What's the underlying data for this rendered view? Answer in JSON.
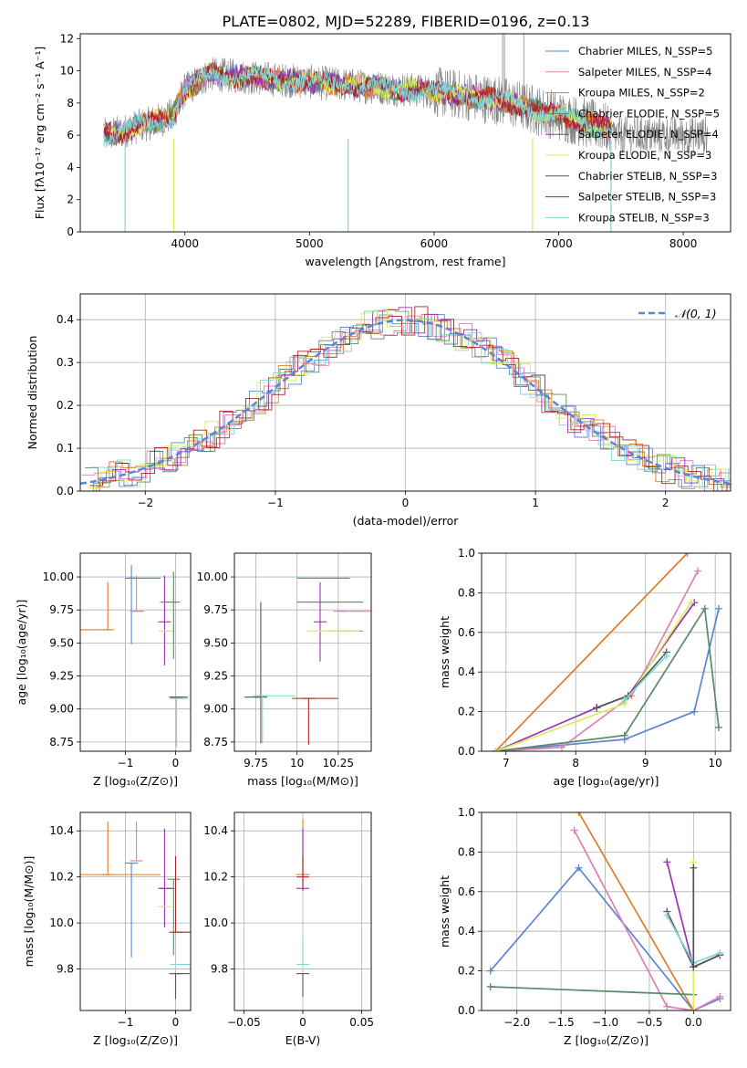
{
  "figure": {
    "title": "PLATE=0802, MJD=52289, FIBERID=0196, z=0.13"
  },
  "colors": {
    "chabrier_miles": "#5b84d2",
    "salpeter_miles": "#e07fb6",
    "kroupa_miles": "#e07b26",
    "chabrier_elodie": "#5b8a66",
    "salpeter_elodie": "#9a2fb0",
    "kroupa_elodie": "#d4ef5a",
    "chabrier_stelib": "#555555",
    "salpeter_stelib": "#b22222",
    "kroupa_stelib": "#7fd6d6",
    "normal_curve": "#5b84d2",
    "grid": "#b0b0b0",
    "spectrum_data": "#808080"
  },
  "chart_data": [
    {
      "id": "spectrum",
      "type": "line",
      "xlabel": "wavelength [Angstrom, rest frame]",
      "ylabel": "Flux [fλ10⁻¹⁷ erg cm⁻² s⁻¹ A⁻¹]",
      "xlim": [
        3160,
        8380
      ],
      "ylim": [
        0,
        12.3
      ],
      "xticks": [
        4000,
        5000,
        6000,
        7000,
        8000
      ],
      "yticks": [
        0,
        2,
        4,
        6,
        8,
        10,
        12
      ],
      "grid": false,
      "legend_position": "top-right",
      "legend": [
        "Chabrier MILES, N_SSP=5",
        "Salpeter MILES, N_SSP=4",
        "Kroupa MILES, N_SSP=2",
        "Chabrier ELODIE, N_SSP=5",
        "Salpeter ELODIE, N_SSP=4",
        "Kroupa ELODIE, N_SSP=3",
        "Chabrier STELIB, N_SSP=3",
        "Salpeter STELIB, N_SSP=3",
        "Kroupa STELIB, N_SSP=3"
      ],
      "continuum": {
        "x": [
          3350,
          3500,
          3550,
          3700,
          3900,
          4000,
          4200,
          4500,
          5000,
          5500,
          6000,
          6500,
          6800,
          7000,
          7200,
          7400
        ],
        "y": [
          6.0,
          6.2,
          6.4,
          6.7,
          7.2,
          8.8,
          9.8,
          9.6,
          9.3,
          9.0,
          8.7,
          8.2,
          7.6,
          7.2,
          6.8,
          6.4
        ]
      },
      "dips": [
        {
          "x": 3520,
          "y": 0
        },
        {
          "x": 3910,
          "y": 0
        },
        {
          "x": 5310,
          "y": 0
        },
        {
          "x": 6790,
          "y": 0
        },
        {
          "x": 7420,
          "y": 0
        }
      ]
    },
    {
      "id": "residuals",
      "type": "histogram",
      "xlabel": "(data-model)/error",
      "ylabel": "Normed distribution",
      "xlim": [
        -2.5,
        2.5
      ],
      "ylim": [
        0,
        0.46
      ],
      "xticks": [
        -2,
        -1,
        0,
        1,
        2
      ],
      "yticks": [
        0.0,
        0.1,
        0.2,
        0.3,
        0.4
      ],
      "grid": true,
      "legend_position": "top-right",
      "legend": [
        "𝒩(0, 1)"
      ],
      "bin_width": 0.1
    },
    {
      "id": "age_metal",
      "type": "errorbar",
      "xlabel": "Z [log₁₀(Z/Z⊙)]",
      "ylabel": "age  [log₁₀(age/yr)]",
      "xlim": [
        -1.9,
        0.3
      ],
      "ylim": [
        8.68,
        10.18
      ],
      "xticks": [
        -1,
        0
      ],
      "yticks": [
        8.75,
        9.0,
        9.25,
        9.5,
        9.75,
        10.0
      ],
      "grid": true,
      "points": [
        {
          "series": "kroupa_miles",
          "x": -1.35,
          "xerr": [
            0.55,
            0.05
          ],
          "y": 9.6,
          "yerr": [
            0.0,
            0.36
          ]
        },
        {
          "series": "chabrier_miles",
          "x": -0.88,
          "xerr": [
            0.05,
            0.58
          ],
          "y": 9.99,
          "yerr": [
            0.5,
            0.1
          ]
        },
        {
          "series": "salpeter_miles",
          "x": -0.78,
          "xerr": [
            0.13,
            0.15
          ],
          "y": 9.74,
          "yerr": [
            0.0,
            0.27
          ]
        },
        {
          "series": "salpeter_elodie",
          "x": -0.22,
          "xerr": [
            0.0,
            0.0
          ],
          "y": 9.66,
          "yerr": [
            0.33,
            0.35
          ]
        },
        {
          "series": "chabrier_elodie",
          "x": -0.18,
          "xerr": [
            0.0,
            0.2
          ],
          "y": 9.81,
          "yerr": [
            0.0,
            0.0
          ]
        },
        {
          "series": "kroupa_elodie",
          "x": -0.18,
          "xerr": [
            0.16,
            0.16
          ],
          "y": 9.59,
          "yerr": [
            0.0,
            0.0
          ]
        },
        {
          "series": "chabrier_elodie",
          "x": -0.04,
          "xerr": [
            0.0,
            0.0
          ],
          "y": 9.81,
          "yerr": [
            0.43,
            0.23
          ]
        },
        {
          "series": "chabrier_stelib",
          "x": 0.02,
          "xerr": [
            0.15,
            0.22
          ],
          "y": 9.09,
          "yerr": [
            0.0,
            0.0
          ]
        },
        {
          "series": "kroupa_stelib",
          "x": 0.02,
          "xerr": [
            0.12,
            0.22
          ],
          "y": 9.08,
          "yerr": [
            0.37,
            0.0
          ]
        }
      ]
    },
    {
      "id": "age_mass",
      "type": "errorbar",
      "xlabel": "mass [log₁₀(M/M⊙)]",
      "ylabel": "",
      "xlim": [
        9.62,
        10.45
      ],
      "ylim": [
        8.68,
        10.18
      ],
      "xticks": [
        9.75,
        10.0,
        10.25
      ],
      "yticks": [
        8.75,
        9.0,
        9.25,
        9.5,
        9.75,
        10.0
      ],
      "grid": true,
      "points": [
        {
          "series": "chabrier_miles",
          "x": 10.2,
          "xerr": [
            0.2,
            0.12
          ],
          "y": 9.99,
          "yerr": [
            0.0,
            0.0
          ]
        },
        {
          "series": "salpeter_miles",
          "x": 10.26,
          "xerr": [
            0.0,
            0.22
          ],
          "y": 9.74,
          "yerr": [
            0.0,
            0.0
          ]
        },
        {
          "series": "kroupa_miles",
          "x": 10.3,
          "xerr": [
            0.1,
            0.1
          ],
          "y": 9.59,
          "yerr": [
            0.0,
            0.0
          ]
        },
        {
          "series": "chabrier_elodie",
          "x": 10.2,
          "xerr": [
            0.2,
            0.2
          ],
          "y": 9.81,
          "yerr": [
            0.0,
            0.0
          ]
        },
        {
          "series": "salpeter_elodie",
          "x": 10.14,
          "xerr": [
            0.0,
            0.0
          ],
          "y": 9.66,
          "yerr": [
            0.3,
            0.3
          ]
        },
        {
          "series": "kroupa_elodie",
          "x": 10.16,
          "xerr": [
            0.1,
            0.22
          ],
          "y": 9.59,
          "yerr": [
            0.0,
            0.0
          ]
        },
        {
          "series": "chabrier_stelib",
          "x": 9.78,
          "xerr": [
            0.1,
            0.0
          ],
          "y": 9.09,
          "yerr": [
            0.35,
            0.72
          ]
        },
        {
          "series": "salpeter_stelib",
          "x": 10.07,
          "xerr": [
            0.1,
            0.18
          ],
          "y": 9.08,
          "yerr": [
            0.35,
            0.0
          ]
        },
        {
          "series": "kroupa_stelib",
          "x": 9.79,
          "xerr": [
            0.06,
            0.2
          ],
          "y": 9.1,
          "yerr": [
            0.36,
            0.0
          ]
        }
      ]
    },
    {
      "id": "mw_age",
      "type": "line",
      "xlabel": "age  [log₁₀(age/yr)]",
      "ylabel": "mass weight",
      "xlim": [
        6.65,
        10.22
      ],
      "ylim": [
        0,
        1.0
      ],
      "xticks": [
        7,
        8,
        9,
        10
      ],
      "yticks": [
        0.0,
        0.2,
        0.4,
        0.6,
        0.8,
        1.0
      ],
      "grid": true,
      "series": [
        {
          "name": "Chabrier MILES",
          "color": "chabrier_miles",
          "x": [
            6.85,
            8.7,
            9.7,
            10.05
          ],
          "y": [
            0.0,
            0.06,
            0.2,
            0.72
          ]
        },
        {
          "name": "Salpeter MILES",
          "color": "salpeter_miles",
          "x": [
            6.85,
            7.8,
            8.8,
            9.75
          ],
          "y": [
            0.0,
            0.02,
            0.28,
            0.91
          ]
        },
        {
          "name": "Kroupa MILES",
          "color": "kroupa_miles",
          "x": [
            6.85,
            9.6
          ],
          "y": [
            0.0,
            1.0
          ]
        },
        {
          "name": "Chabrier ELODIE",
          "color": "chabrier_elodie",
          "x": [
            6.85,
            8.7,
            9.85,
            10.05
          ],
          "y": [
            0.0,
            0.08,
            0.72,
            0.12
          ]
        },
        {
          "name": "Salpeter ELODIE",
          "color": "salpeter_elodie",
          "x": [
            6.85,
            8.3,
            8.75,
            9.7
          ],
          "y": [
            0.0,
            0.22,
            0.28,
            0.75
          ]
        },
        {
          "name": "Kroupa ELODIE",
          "color": "kroupa_elodie",
          "x": [
            6.85,
            8.7,
            9.65
          ],
          "y": [
            0.0,
            0.24,
            0.75
          ]
        },
        {
          "name": "Chabrier STELIB",
          "color": "chabrier_stelib",
          "x": [
            8.3,
            8.75,
            9.3
          ],
          "y": [
            0.22,
            0.28,
            0.5
          ]
        },
        {
          "name": "Kroupa STELIB",
          "color": "kroupa_stelib",
          "x": [
            8.7,
            9.3
          ],
          "y": [
            0.26,
            0.48
          ]
        }
      ]
    },
    {
      "id": "mass_metal",
      "type": "errorbar",
      "xlabel": "Z [log₁₀(Z/Z⊙)]",
      "ylabel": "mass [log₁₀(M/M⊙)]",
      "xlim": [
        -1.9,
        0.3
      ],
      "ylim": [
        9.62,
        10.48
      ],
      "xticks": [
        -1,
        0
      ],
      "yticks": [
        9.8,
        10.0,
        10.2,
        10.4
      ],
      "grid": true,
      "points": [
        {
          "series": "kroupa_miles",
          "x": -1.35,
          "xerr": [
            0.55,
            1.05
          ],
          "y": 10.21,
          "yerr": [
            0.0,
            0.23
          ]
        },
        {
          "series": "chabrier_miles",
          "x": -0.88,
          "xerr": [
            0.05,
            0.1
          ],
          "y": 10.26,
          "yerr": [
            0.41,
            0.0
          ]
        },
        {
          "series": "salpeter_miles",
          "x": -0.78,
          "xerr": [
            0.1,
            0.12
          ],
          "y": 10.27,
          "yerr": [
            0.0,
            0.17
          ]
        },
        {
          "series": "salpeter_elodie",
          "x": -0.22,
          "xerr": [
            0.1,
            0.2
          ],
          "y": 10.15,
          "yerr": [
            0.17,
            0.26
          ]
        },
        {
          "series": "kroupa_elodie",
          "x": -0.22,
          "xerr": [
            0.13,
            0.1
          ],
          "y": 10.07,
          "yerr": [
            0.0,
            0.0
          ]
        },
        {
          "series": "chabrier_elodie",
          "x": -0.04,
          "xerr": [
            0.0,
            0.0
          ],
          "y": 10.19,
          "yerr": [
            0.33,
            0.0
          ]
        },
        {
          "series": "salpeter_stelib",
          "x": 0.0,
          "xerr": [
            0.0,
            0.3
          ],
          "y": 9.96,
          "yerr": [
            0.0,
            0.33
          ]
        },
        {
          "series": "kroupa_stelib",
          "x": 0.02,
          "xerr": [
            0.0,
            0.28
          ],
          "y": 9.82,
          "yerr": [
            0.0,
            0.0
          ]
        },
        {
          "series": "chabrier_stelib",
          "x": 0.0,
          "xerr": [
            0.0,
            0.28
          ],
          "y": 9.78,
          "yerr": [
            0.11,
            0.0
          ]
        }
      ]
    },
    {
      "id": "mass_ebv",
      "type": "errorbar",
      "xlabel": "E(B-V)",
      "ylabel": "",
      "xlim": [
        -0.058,
        0.058
      ],
      "ylim": [
        9.62,
        10.48
      ],
      "xticks": [
        -0.05,
        0.0,
        0.05
      ],
      "yticks": [
        9.8,
        10.0,
        10.2,
        10.4
      ],
      "grid": true,
      "points": [
        {
          "series": "kroupa_miles",
          "x": 0.0,
          "xerr": [
            0.0,
            0.0
          ],
          "y": 10.21,
          "yerr": [
            0.0,
            0.24
          ]
        },
        {
          "series": "salpeter_elodie",
          "x": 0.0,
          "xerr": [
            0.0,
            0.0
          ],
          "y": 10.15,
          "yerr": [
            0.0,
            0.26
          ]
        },
        {
          "series": "salpeter_stelib",
          "x": 0.0,
          "xerr": [
            0.0,
            0.0
          ],
          "y": 10.2,
          "yerr": [
            0.06,
            0.09
          ]
        },
        {
          "series": "kroupa_stelib",
          "x": 0.0,
          "xerr": [
            0.0,
            0.0
          ],
          "y": 9.82,
          "yerr": [
            0.0,
            0.12
          ]
        },
        {
          "series": "chabrier_stelib",
          "x": 0.0,
          "xerr": [
            0.0,
            0.0
          ],
          "y": 9.78,
          "yerr": [
            0.1,
            0.0
          ]
        }
      ]
    },
    {
      "id": "mw_metal",
      "type": "line",
      "xlabel": "Z [log₁₀(Z/Z⊙)]",
      "ylabel": "mass weight",
      "xlim": [
        -2.4,
        0.42
      ],
      "ylim": [
        0,
        1.0
      ],
      "xticks": [
        -2.0,
        -1.5,
        -1.0,
        -0.5,
        0.0
      ],
      "yticks": [
        0.0,
        0.2,
        0.4,
        0.6,
        0.8,
        1.0
      ],
      "grid": true,
      "series": [
        {
          "name": "Chabrier MILES",
          "color": "chabrier_miles",
          "x": [
            -2.3,
            -1.3,
            0.0,
            0.3
          ],
          "y": [
            0.2,
            0.72,
            0.0,
            0.06
          ]
        },
        {
          "name": "Salpeter MILES",
          "color": "salpeter_miles",
          "x": [
            -1.35,
            -0.3,
            0.0,
            0.3
          ],
          "y": [
            0.91,
            0.02,
            0.0,
            0.07
          ]
        },
        {
          "name": "Kroupa MILES",
          "color": "kroupa_miles",
          "x": [
            -1.3,
            0.0
          ],
          "y": [
            1.0,
            0.0
          ]
        },
        {
          "name": "Chabrier ELODIE",
          "color": "chabrier_elodie",
          "x": [
            -2.3,
            0.0
          ],
          "y": [
            0.12,
            0.08
          ]
        },
        {
          "name": "Salpeter ELODIE",
          "color": "salpeter_elodie",
          "x": [
            -0.3,
            0.0,
            0.3
          ],
          "y": [
            0.75,
            0.22,
            0.28
          ]
        },
        {
          "name": "Kroupa ELODIE",
          "color": "kroupa_elodie",
          "x": [
            0.0,
            0.0
          ],
          "y": [
            0.0,
            0.75
          ]
        },
        {
          "name": "Chabrier STELIB",
          "color": "chabrier_stelib",
          "x": [
            -0.3,
            0.0,
            0.3
          ],
          "y": [
            0.5,
            0.22,
            0.28
          ]
        },
        {
          "name": "Kroupa STELIB",
          "color": "kroupa_stelib",
          "x": [
            -0.3,
            0.0,
            0.3
          ],
          "y": [
            0.48,
            0.24,
            0.29
          ]
        },
        {
          "name": "Chabrier STELIB",
          "color": "chabrier_stelib",
          "x": [
            0.0,
            0.0
          ],
          "y": [
            0.72,
            0.22
          ]
        }
      ]
    }
  ]
}
